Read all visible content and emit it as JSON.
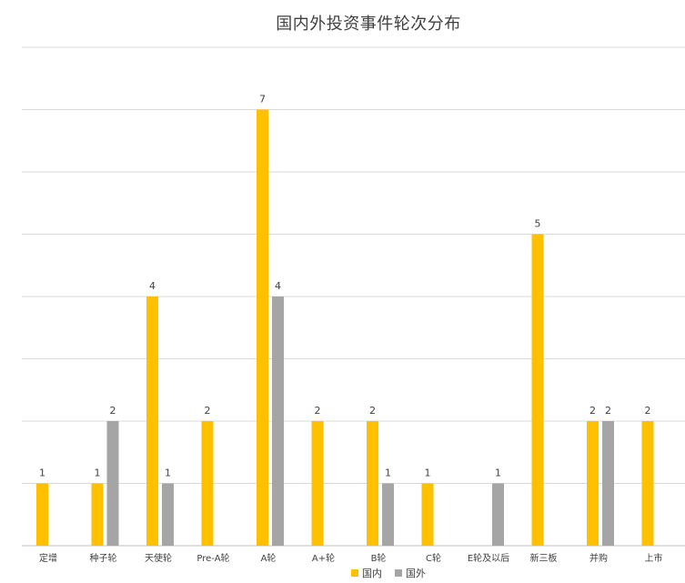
{
  "chart_data": {
    "type": "bar",
    "title": "国内外投资事件轮次分布",
    "categories": [
      "定增",
      "种子轮",
      "天使轮",
      "Pre-A轮",
      "A轮",
      "A+轮",
      "B轮",
      "C轮",
      "E轮及以后",
      "新三板",
      "并购",
      "上市"
    ],
    "series": [
      {
        "name": "国内",
        "values": [
          1,
          1,
          4,
          2,
          7,
          2,
          2,
          1,
          null,
          5,
          2,
          2
        ],
        "color": "#FFC000"
      },
      {
        "name": "国外",
        "values": [
          null,
          2,
          1,
          null,
          4,
          null,
          1,
          null,
          1,
          null,
          2,
          null
        ],
        "color": "#A5A5A5"
      }
    ],
    "ylim": [
      0,
      8
    ],
    "grid": true,
    "legend_position": "bottom",
    "data_labels": true
  }
}
